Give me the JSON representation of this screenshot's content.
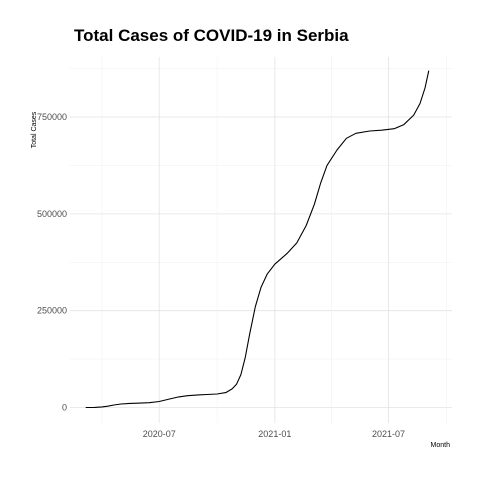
{
  "chart_data": {
    "type": "line",
    "title": "Total Cases of COVID-19 in Serbia",
    "xlabel": "Month",
    "ylabel": "Total Cases",
    "x_ticks": [
      "2020-07",
      "2021-01",
      "2021-07"
    ],
    "y_ticks": [
      "0",
      "250000",
      "500000",
      "750000"
    ],
    "x_range": [
      "2020-02-10",
      "2021-10-10"
    ],
    "y_range": [
      -40000,
      905000
    ],
    "grid": true,
    "series": [
      {
        "color": "#000000",
        "points": [
          [
            "2020-03-06",
            0
          ],
          [
            "2020-03-20",
            200
          ],
          [
            "2020-04-01",
            1500
          ],
          [
            "2020-04-10",
            3500
          ],
          [
            "2020-04-20",
            6500
          ],
          [
            "2020-05-01",
            9000
          ],
          [
            "2020-05-15",
            10500
          ],
          [
            "2020-06-01",
            11500
          ],
          [
            "2020-06-15",
            12500
          ],
          [
            "2020-07-01",
            15500
          ],
          [
            "2020-07-15",
            21000
          ],
          [
            "2020-08-01",
            27500
          ],
          [
            "2020-08-15",
            30500
          ],
          [
            "2020-09-01",
            32500
          ],
          [
            "2020-09-15",
            33500
          ],
          [
            "2020-10-01",
            35000
          ],
          [
            "2020-10-15",
            38500
          ],
          [
            "2020-10-25",
            48000
          ],
          [
            "2020-11-01",
            60000
          ],
          [
            "2020-11-08",
            85000
          ],
          [
            "2020-11-15",
            130000
          ],
          [
            "2020-11-22",
            190000
          ],
          [
            "2020-12-01",
            260000
          ],
          [
            "2020-12-10",
            310000
          ],
          [
            "2020-12-20",
            345000
          ],
          [
            "2021-01-01",
            370000
          ],
          [
            "2021-01-20",
            397000
          ],
          [
            "2021-02-05",
            425000
          ],
          [
            "2021-02-20",
            470000
          ],
          [
            "2021-03-05",
            525000
          ],
          [
            "2021-03-15",
            580000
          ],
          [
            "2021-03-25",
            625000
          ],
          [
            "2021-04-10",
            665000
          ],
          [
            "2021-04-25",
            695000
          ],
          [
            "2021-05-10",
            708000
          ],
          [
            "2021-06-01",
            714000
          ],
          [
            "2021-06-20",
            716000
          ],
          [
            "2021-07-10",
            720000
          ],
          [
            "2021-07-25",
            730000
          ],
          [
            "2021-08-10",
            755000
          ],
          [
            "2021-08-20",
            785000
          ],
          [
            "2021-08-28",
            825000
          ],
          [
            "2021-09-03",
            870000
          ]
        ]
      }
    ]
  }
}
